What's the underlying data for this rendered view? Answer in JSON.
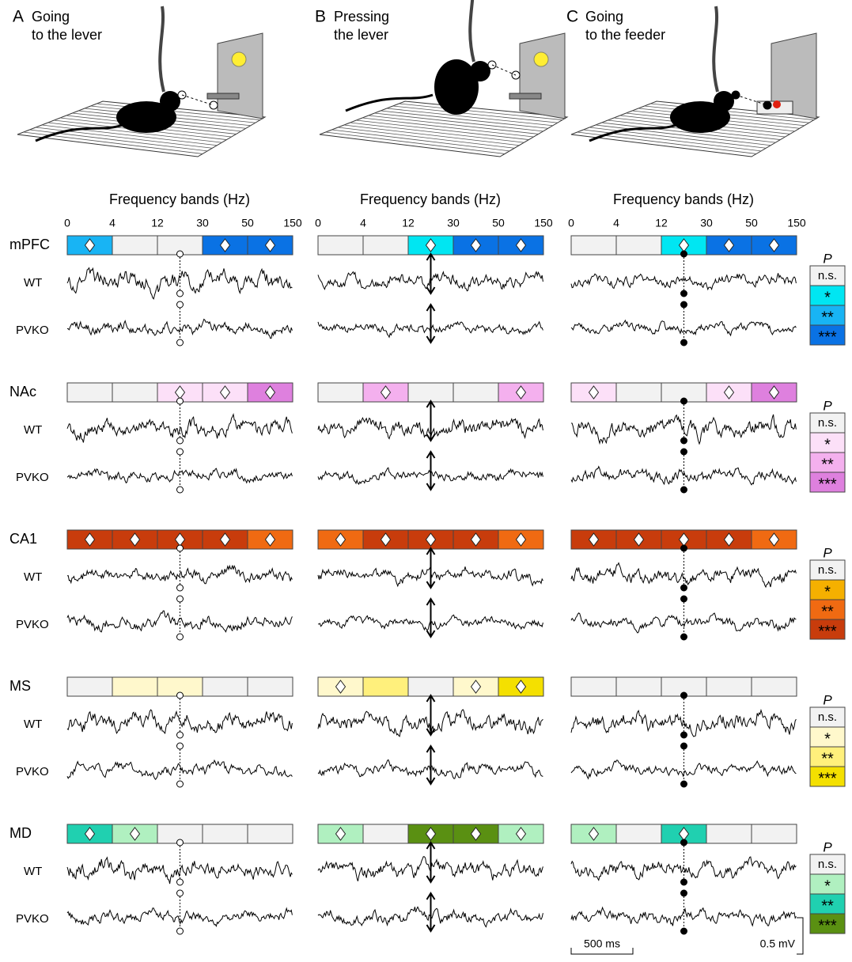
{
  "panels": [
    {
      "letter": "A",
      "title": [
        "Going",
        "to the lever"
      ],
      "axis_label": "Frequency bands (Hz)",
      "band_edges": [
        0,
        4,
        12,
        30,
        50,
        150
      ]
    },
    {
      "letter": "B",
      "title": [
        "Pressing",
        "the lever"
      ],
      "axis_label": "Frequency bands (Hz)",
      "band_edges": [
        0,
        4,
        12,
        30,
        50,
        150
      ]
    },
    {
      "letter": "C",
      "title": [
        "Going",
        "to the feeder"
      ],
      "axis_label": "Frequency bands (Hz)",
      "band_edges": [
        0,
        4,
        12,
        30,
        50,
        150
      ]
    }
  ],
  "regions": [
    {
      "name": "mPFC",
      "rows": [
        "WT",
        "PVKO"
      ],
      "p_label": "P",
      "legend": [
        "n.s.",
        "*",
        "**",
        "***"
      ],
      "colors": [
        "#f2f2f2",
        "#00e6f2",
        "#18b4f4",
        "#0a72e4"
      ],
      "text_colors": [
        "#000000",
        "#000000",
        "#ffffff",
        "#ffffff"
      ],
      "levels": [
        [
          2,
          0,
          0,
          3,
          3
        ],
        [
          0,
          0,
          1,
          3,
          3
        ],
        [
          0,
          0,
          1,
          3,
          3
        ]
      ],
      "diamonds": [
        [
          true,
          false,
          false,
          true,
          true
        ],
        [
          false,
          false,
          true,
          true,
          true
        ],
        [
          false,
          false,
          true,
          true,
          true
        ]
      ]
    },
    {
      "name": "NAc",
      "rows": [
        "WT",
        "PVKO"
      ],
      "p_label": "P",
      "legend": [
        "n.s.",
        "*",
        "**",
        "***"
      ],
      "colors": [
        "#f2f2f2",
        "#fce0f8",
        "#f4b0ee",
        "#de80de"
      ],
      "text_colors": [
        "#000000",
        "#000000",
        "#ffffff",
        "#ffffff"
      ],
      "levels": [
        [
          0,
          0,
          1,
          1,
          3
        ],
        [
          0,
          2,
          0,
          0,
          2
        ],
        [
          1,
          0,
          0,
          1,
          3
        ]
      ],
      "diamonds": [
        [
          false,
          false,
          true,
          true,
          true
        ],
        [
          false,
          true,
          false,
          false,
          true
        ],
        [
          true,
          false,
          false,
          true,
          true
        ]
      ]
    },
    {
      "name": "CA1",
      "rows": [
        "WT",
        "PVKO"
      ],
      "p_label": "P",
      "legend": [
        "n.s.",
        "*",
        "**",
        "***"
      ],
      "colors": [
        "#f2f2f2",
        "#f5b000",
        "#f06a12",
        "#c83c0c"
      ],
      "text_colors": [
        "#000000",
        "#000000",
        "#ffffff",
        "#ffffff"
      ],
      "levels": [
        [
          3,
          3,
          3,
          3,
          2
        ],
        [
          2,
          3,
          3,
          3,
          2
        ],
        [
          3,
          3,
          3,
          3,
          2
        ]
      ],
      "diamonds": [
        [
          true,
          true,
          true,
          true,
          true
        ],
        [
          true,
          true,
          true,
          true,
          true
        ],
        [
          true,
          true,
          true,
          true,
          true
        ]
      ]
    },
    {
      "name": "MS",
      "rows": [
        "WT",
        "PVKO"
      ],
      "p_label": "P",
      "legend": [
        "n.s.",
        "*",
        "**",
        "***"
      ],
      "colors": [
        "#f2f2f2",
        "#fff8cc",
        "#fff07c",
        "#f4e000"
      ],
      "text_colors": [
        "#000000",
        "#000000",
        "#000000",
        "#000000"
      ],
      "levels": [
        [
          0,
          1,
          1,
          0,
          0
        ],
        [
          1,
          2,
          0,
          1,
          3
        ],
        [
          0,
          0,
          0,
          0,
          0
        ]
      ],
      "diamonds": [
        [
          false,
          false,
          false,
          false,
          false
        ],
        [
          true,
          false,
          false,
          true,
          true
        ],
        [
          false,
          false,
          false,
          false,
          false
        ]
      ]
    },
    {
      "name": "MD",
      "rows": [
        "WT",
        "PVKO"
      ],
      "p_label": "P",
      "legend": [
        "n.s.",
        "*",
        "**",
        "***"
      ],
      "colors": [
        "#f2f2f2",
        "#b0f0c0",
        "#20d0b0",
        "#5a9012"
      ],
      "text_colors": [
        "#000000",
        "#000000",
        "#ffffff",
        "#ffffff"
      ],
      "levels": [
        [
          2,
          1,
          0,
          0,
          0
        ],
        [
          1,
          0,
          3,
          3,
          1
        ],
        [
          1,
          0,
          2,
          0,
          0
        ]
      ],
      "diamonds": [
        [
          true,
          true,
          false,
          false,
          false
        ],
        [
          true,
          false,
          true,
          true,
          true
        ],
        [
          true,
          false,
          true,
          false,
          false
        ]
      ]
    }
  ],
  "scale_bar": {
    "time": "500 ms",
    "voltage": "0.5 mV"
  }
}
